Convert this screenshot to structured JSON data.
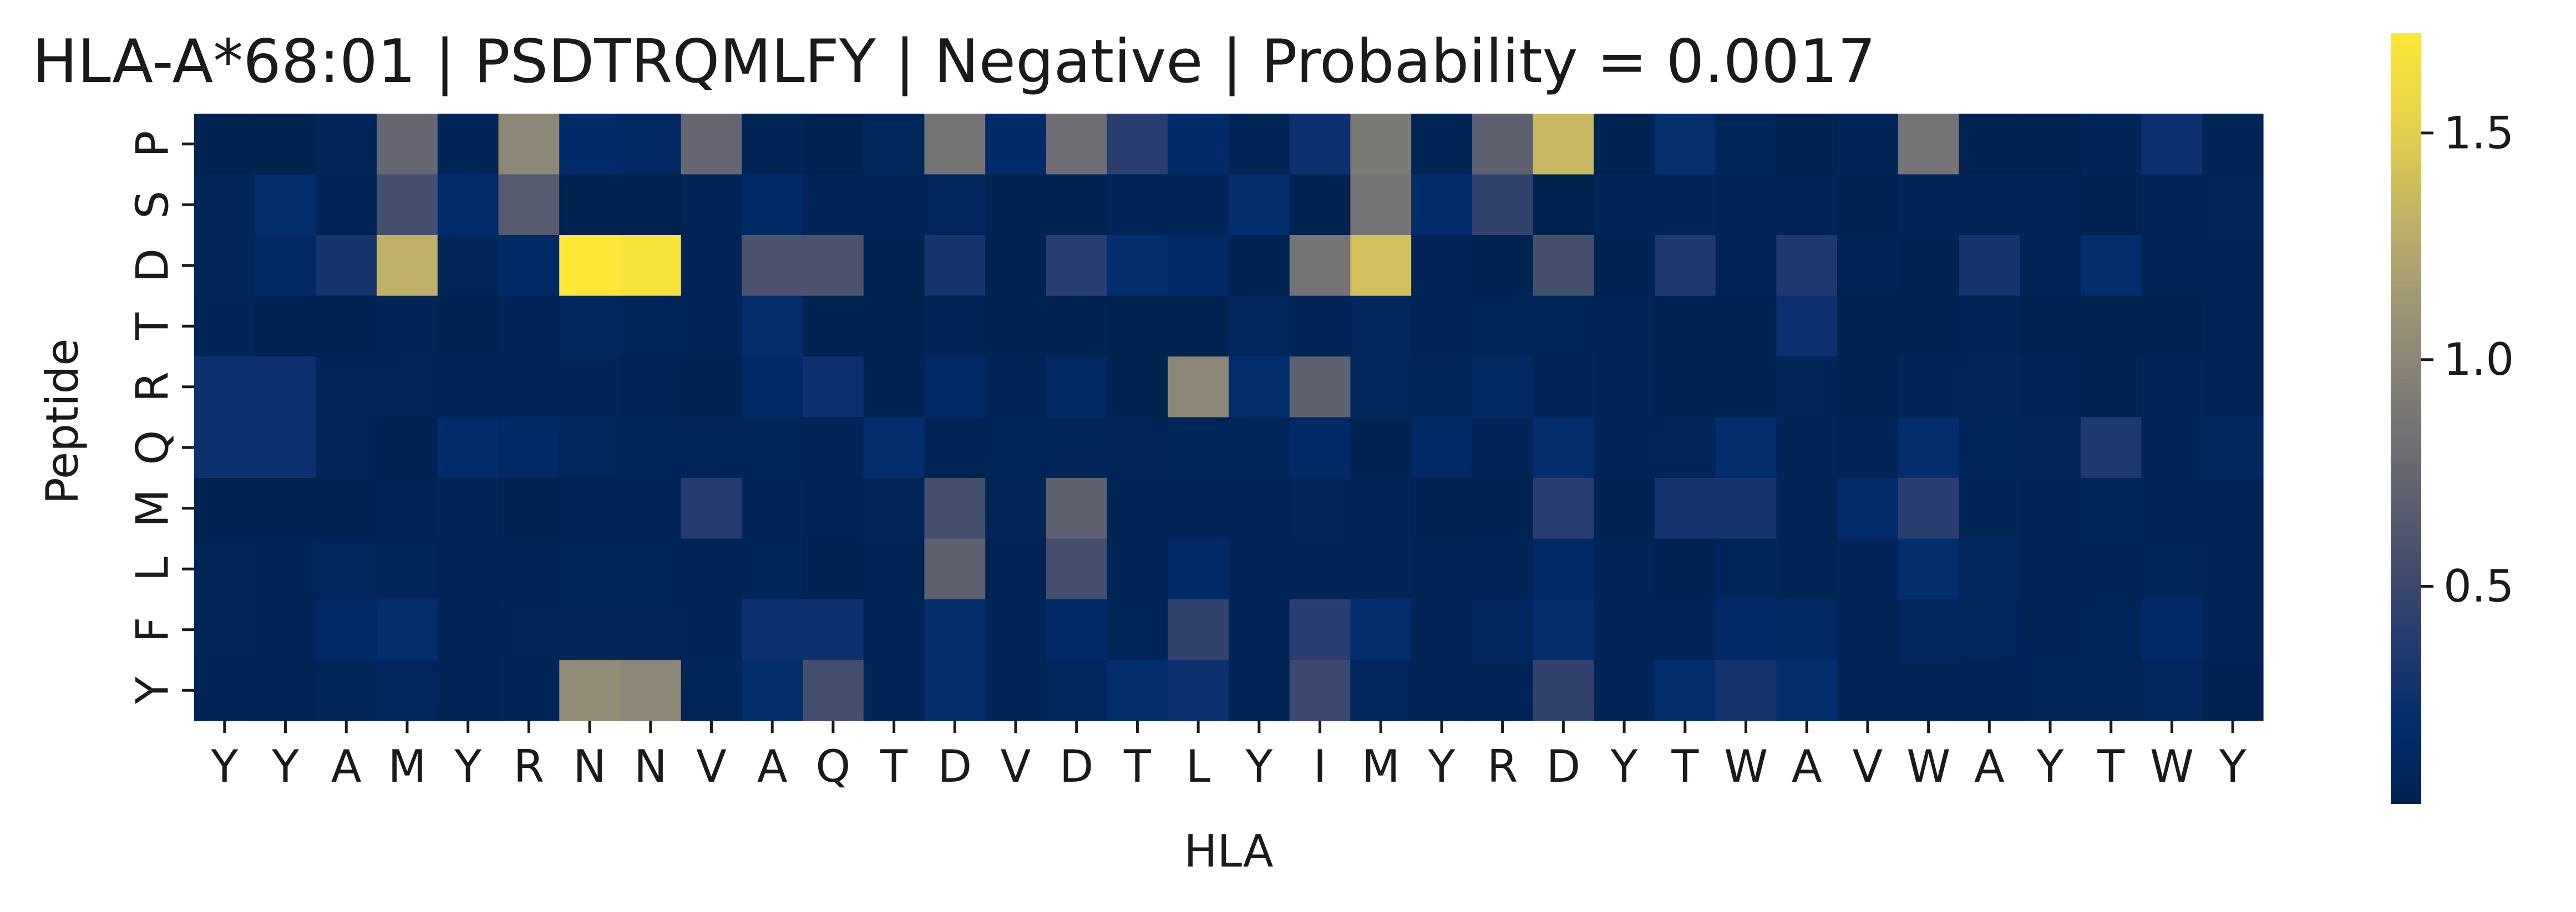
{
  "chart_data": {
    "type": "heatmap",
    "title": "HLA-A*68:01 | PSDTRQMLFY | Negative | Probability = 0.0017",
    "xlabel": "HLA",
    "ylabel": "Peptide",
    "x_labels": [
      "Y",
      "Y",
      "A",
      "M",
      "Y",
      "R",
      "N",
      "N",
      "V",
      "A",
      "Q",
      "T",
      "D",
      "V",
      "D",
      "T",
      "L",
      "Y",
      "I",
      "M",
      "Y",
      "R",
      "D",
      "Y",
      "T",
      "W",
      "A",
      "V",
      "W",
      "A",
      "Y",
      "T",
      "W",
      "Y"
    ],
    "y_labels": [
      "P",
      "S",
      "D",
      "T",
      "R",
      "Q",
      "M",
      "L",
      "F",
      "Y"
    ],
    "colormap": "cividis",
    "color_range": [
      0.02,
      1.72
    ],
    "colorbar_ticks": [
      0.5,
      1.0,
      1.5
    ],
    "colorbar_tick_labels": [
      "0.5",
      "1.0",
      "1.5"
    ],
    "values": [
      [
        0.03,
        0.03,
        0.07,
        0.75,
        0.06,
        1.0,
        0.16,
        0.12,
        0.75,
        0.05,
        0.04,
        0.09,
        0.85,
        0.16,
        0.8,
        0.4,
        0.16,
        0.05,
        0.25,
        0.9,
        0.05,
        0.7,
        1.35,
        0.03,
        0.22,
        0.08,
        0.04,
        0.06,
        0.85,
        0.04,
        0.04,
        0.06,
        0.25,
        0.05
      ],
      [
        0.07,
        0.2,
        0.05,
        0.55,
        0.18,
        0.65,
        0.02,
        0.02,
        0.05,
        0.15,
        0.06,
        0.06,
        0.1,
        0.04,
        0.04,
        0.05,
        0.06,
        0.2,
        0.03,
        0.85,
        0.18,
        0.45,
        0.02,
        0.06,
        0.06,
        0.05,
        0.05,
        0.04,
        0.06,
        0.06,
        0.06,
        0.04,
        0.06,
        0.07
      ],
      [
        0.07,
        0.12,
        0.3,
        1.3,
        0.07,
        0.14,
        1.72,
        1.68,
        0.06,
        0.6,
        0.6,
        0.04,
        0.3,
        0.04,
        0.4,
        0.2,
        0.15,
        0.04,
        0.85,
        1.4,
        0.05,
        0.04,
        0.55,
        0.04,
        0.35,
        0.05,
        0.35,
        0.05,
        0.04,
        0.3,
        0.06,
        0.2,
        0.05,
        0.05
      ],
      [
        0.06,
        0.04,
        0.04,
        0.05,
        0.04,
        0.05,
        0.09,
        0.08,
        0.06,
        0.2,
        0.03,
        0.03,
        0.05,
        0.03,
        0.04,
        0.02,
        0.04,
        0.09,
        0.06,
        0.1,
        0.05,
        0.08,
        0.08,
        0.05,
        0.03,
        0.04,
        0.25,
        0.03,
        0.04,
        0.05,
        0.04,
        0.02,
        0.02,
        0.05
      ],
      [
        0.25,
        0.25,
        0.07,
        0.07,
        0.06,
        0.06,
        0.06,
        0.05,
        0.03,
        0.15,
        0.25,
        0.04,
        0.15,
        0.05,
        0.12,
        0.03,
        1.0,
        0.2,
        0.7,
        0.1,
        0.08,
        0.12,
        0.06,
        0.05,
        0.04,
        0.04,
        0.07,
        0.04,
        0.06,
        0.07,
        0.05,
        0.04,
        0.06,
        0.05
      ],
      [
        0.25,
        0.25,
        0.07,
        0.03,
        0.18,
        0.15,
        0.1,
        0.08,
        0.08,
        0.08,
        0.06,
        0.2,
        0.05,
        0.08,
        0.08,
        0.07,
        0.08,
        0.08,
        0.15,
        0.03,
        0.15,
        0.06,
        0.2,
        0.06,
        0.07,
        0.2,
        0.06,
        0.05,
        0.2,
        0.08,
        0.07,
        0.35,
        0.06,
        0.09
      ],
      [
        0.04,
        0.04,
        0.04,
        0.05,
        0.06,
        0.04,
        0.05,
        0.05,
        0.38,
        0.06,
        0.05,
        0.07,
        0.55,
        0.07,
        0.7,
        0.06,
        0.05,
        0.05,
        0.07,
        0.06,
        0.04,
        0.04,
        0.4,
        0.04,
        0.3,
        0.3,
        0.05,
        0.18,
        0.4,
        0.06,
        0.05,
        0.08,
        0.06,
        0.06
      ],
      [
        0.07,
        0.06,
        0.1,
        0.08,
        0.05,
        0.05,
        0.08,
        0.08,
        0.05,
        0.08,
        0.04,
        0.05,
        0.7,
        0.05,
        0.55,
        0.05,
        0.15,
        0.05,
        0.05,
        0.06,
        0.05,
        0.06,
        0.15,
        0.05,
        0.04,
        0.08,
        0.05,
        0.06,
        0.2,
        0.1,
        0.05,
        0.06,
        0.08,
        0.05
      ],
      [
        0.07,
        0.06,
        0.15,
        0.2,
        0.05,
        0.07,
        0.07,
        0.07,
        0.06,
        0.25,
        0.25,
        0.06,
        0.2,
        0.06,
        0.15,
        0.08,
        0.45,
        0.06,
        0.4,
        0.2,
        0.05,
        0.1,
        0.2,
        0.06,
        0.06,
        0.15,
        0.12,
        0.05,
        0.1,
        0.1,
        0.06,
        0.08,
        0.15,
        0.06
      ],
      [
        0.06,
        0.05,
        0.08,
        0.1,
        0.05,
        0.06,
        1.05,
        1.0,
        0.08,
        0.2,
        0.55,
        0.06,
        0.2,
        0.06,
        0.1,
        0.2,
        0.25,
        0.05,
        0.5,
        0.1,
        0.06,
        0.06,
        0.45,
        0.06,
        0.2,
        0.3,
        0.2,
        0.06,
        0.06,
        0.05,
        0.08,
        0.08,
        0.1,
        0.04
      ]
    ]
  }
}
